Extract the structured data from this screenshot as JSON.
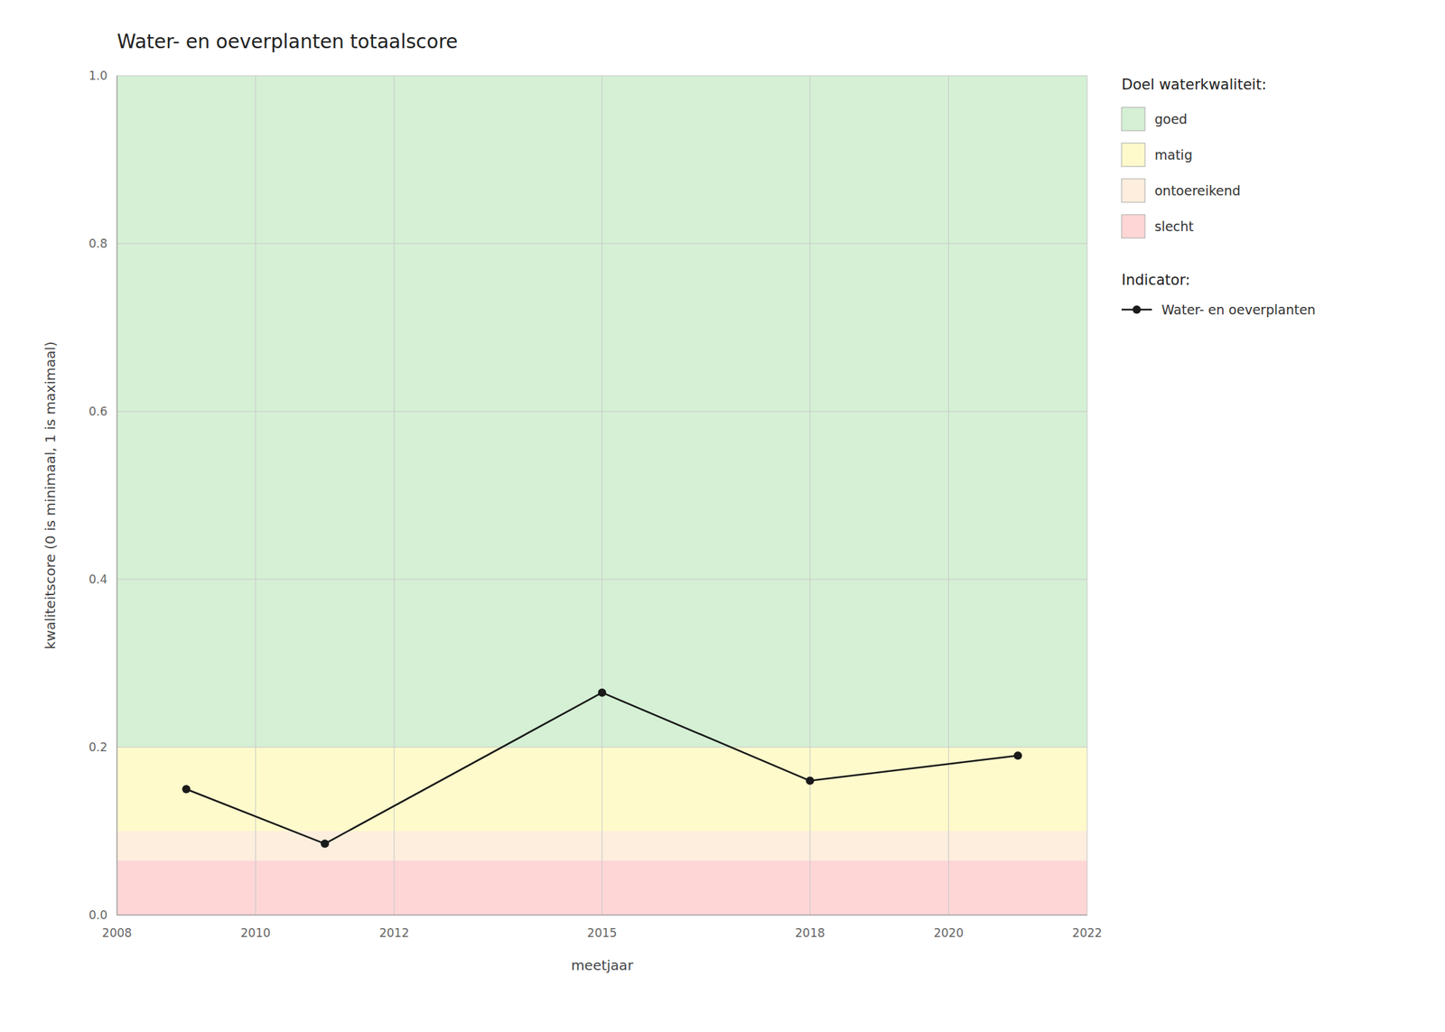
{
  "chart_data": {
    "type": "line",
    "title": "Water- en oeverplanten totaalscore",
    "x_label": "meetjaar",
    "y_label": "kwaliteitscore (0 is minimaal, 1 is maximaal)",
    "x": [
      2009,
      2011,
      2015,
      2018,
      2021
    ],
    "series": [
      {
        "name": "Water- en oeverplanten",
        "color": "#1a1a1a",
        "marker": "circle",
        "values": [
          0.15,
          0.085,
          0.265,
          0.16,
          0.19
        ]
      }
    ],
    "xlim": [
      2008,
      2022
    ],
    "ylim": [
      0.0,
      1.0
    ],
    "xticks": [
      2008,
      2010,
      2012,
      2015,
      2018,
      2020,
      2022
    ],
    "yticks": [
      {
        "value": 0.0,
        "label": "0.0"
      },
      0.2,
      0.4,
      0.6,
      0.8,
      {
        "value": 1.0,
        "label": "1.0"
      }
    ],
    "bands": [
      {
        "name": "goed",
        "color": "#d5f0d5",
        "from": 0.2,
        "to": 1.0
      },
      {
        "name": "matig",
        "color": "#fffacc",
        "from": 0.1,
        "to": 0.2
      },
      {
        "name": "ontoereikend",
        "color": "#fdeedd",
        "from": 0.065,
        "to": 0.1
      },
      {
        "name": "slecht",
        "color": "#ffd6d6",
        "from": 0.0,
        "to": 0.065
      }
    ],
    "bands_legend_title": "Doel waterkwaliteit:",
    "series_legend_title": "Indicator:",
    "grid": true,
    "legend": "right"
  }
}
